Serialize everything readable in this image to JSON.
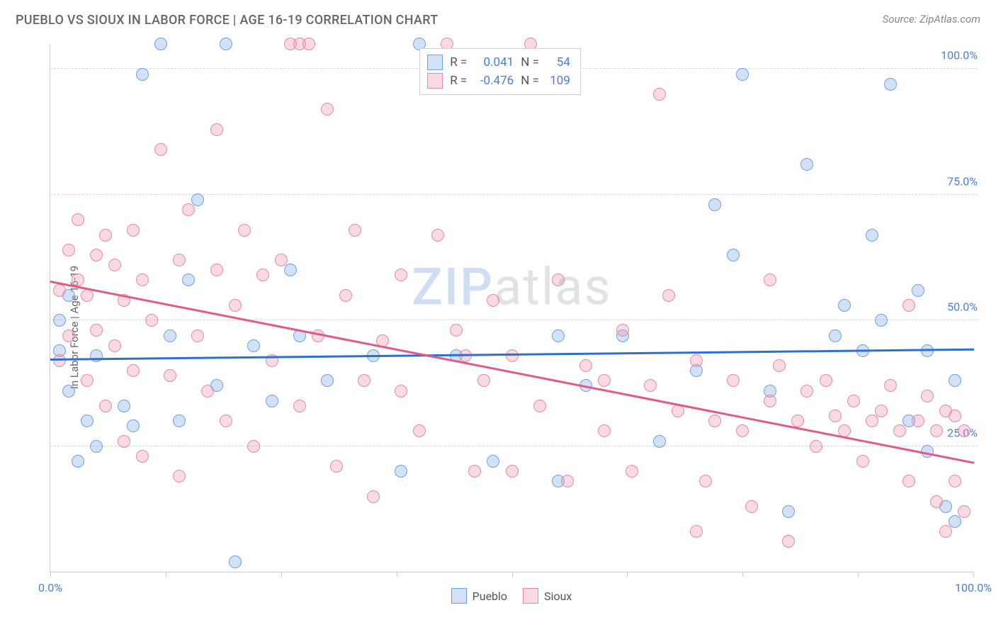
{
  "title": "PUEBLO VS SIOUX IN LABOR FORCE | AGE 16-19 CORRELATION CHART",
  "source": "Source: ZipAtlas.com",
  "ylabel": "In Labor Force | Age 16-19",
  "watermark_bold": "ZIP",
  "watermark_rest": "atlas",
  "chart": {
    "type": "scatter",
    "background_color": "#ffffff",
    "grid_color": "#d8d8d8",
    "axis_color": "#cccccc",
    "xlim": [
      0,
      100
    ],
    "ylim": [
      0,
      105
    ],
    "xtick_positions": [
      0,
      12.5,
      25,
      37.5,
      50,
      62.5,
      75,
      87.5,
      100
    ],
    "xtick_labels": {
      "0": "0.0%",
      "100": "100.0%"
    },
    "ytick_positions": [
      25,
      50,
      75,
      100
    ],
    "ytick_labels": {
      "25": "25.0%",
      "50": "50.0%",
      "75": "75.0%",
      "100": "100.0%"
    },
    "label_color": "#4a7fd6",
    "label_fontsize": 16,
    "title_fontsize": 18,
    "title_color": "#666666",
    "point_radius": 9,
    "point_border_width": 1.5,
    "point_fill_opacity": 0.35,
    "series": [
      {
        "name": "Pueblo",
        "color_border": "#6aa2e8",
        "color_fill": "rgba(130,170,230,0.35)",
        "trend_color": "#2f6fd0",
        "R": "0.041",
        "N": "54",
        "trend": {
          "x1": 0,
          "y1": 42.5,
          "x2": 100,
          "y2": 44.5
        },
        "points": [
          [
            1,
            44
          ],
          [
            1,
            50
          ],
          [
            2,
            36
          ],
          [
            2,
            55
          ],
          [
            3,
            22
          ],
          [
            4,
            30
          ],
          [
            5,
            25
          ],
          [
            5,
            43
          ],
          [
            8,
            33
          ],
          [
            9,
            29
          ],
          [
            10,
            99
          ],
          [
            12,
            105
          ],
          [
            13,
            47
          ],
          [
            15,
            58
          ],
          [
            16,
            74
          ],
          [
            18,
            37
          ],
          [
            19,
            105
          ],
          [
            20,
            2
          ],
          [
            22,
            45
          ],
          [
            24,
            34
          ],
          [
            26,
            60
          ],
          [
            27,
            47
          ],
          [
            30,
            38
          ],
          [
            35,
            43
          ],
          [
            38,
            20
          ],
          [
            44,
            43
          ],
          [
            48,
            22
          ],
          [
            55,
            18
          ],
          [
            58,
            37
          ],
          [
            62,
            47
          ],
          [
            66,
            26
          ],
          [
            70,
            40
          ],
          [
            72,
            73
          ],
          [
            74,
            63
          ],
          [
            75,
            99
          ],
          [
            78,
            36
          ],
          [
            80,
            12
          ],
          [
            82,
            81
          ],
          [
            85,
            47
          ],
          [
            86,
            53
          ],
          [
            88,
            44
          ],
          [
            89,
            67
          ],
          [
            90,
            50
          ],
          [
            91,
            97
          ],
          [
            93,
            30
          ],
          [
            94,
            56
          ],
          [
            95,
            44
          ],
          [
            95,
            24
          ],
          [
            97,
            13
          ],
          [
            98,
            10
          ],
          [
            98,
            38
          ],
          [
            55,
            47
          ],
          [
            40,
            105
          ],
          [
            14,
            30
          ]
        ]
      },
      {
        "name": "Sioux",
        "color_border": "#e88aa5",
        "color_fill": "rgba(235,150,175,0.35)",
        "trend_color": "#e05a8a",
        "R": "-0.476",
        "N": "109",
        "trend": {
          "x1": 0,
          "y1": 58.0,
          "x2": 100,
          "y2": 22.0
        },
        "points": [
          [
            1,
            56
          ],
          [
            1,
            42
          ],
          [
            2,
            64
          ],
          [
            2,
            47
          ],
          [
            3,
            58
          ],
          [
            3,
            70
          ],
          [
            4,
            55
          ],
          [
            4,
            38
          ],
          [
            5,
            63
          ],
          [
            5,
            48
          ],
          [
            6,
            67
          ],
          [
            6,
            33
          ],
          [
            7,
            45
          ],
          [
            7,
            61
          ],
          [
            8,
            54
          ],
          [
            8,
            26
          ],
          [
            9,
            68
          ],
          [
            9,
            40
          ],
          [
            10,
            58
          ],
          [
            10,
            23
          ],
          [
            11,
            50
          ],
          [
            12,
            84
          ],
          [
            13,
            39
          ],
          [
            14,
            62
          ],
          [
            14,
            19
          ],
          [
            15,
            72
          ],
          [
            16,
            47
          ],
          [
            17,
            36
          ],
          [
            18,
            60
          ],
          [
            18,
            88
          ],
          [
            19,
            30
          ],
          [
            20,
            53
          ],
          [
            21,
            68
          ],
          [
            22,
            25
          ],
          [
            23,
            59
          ],
          [
            24,
            42
          ],
          [
            25,
            62
          ],
          [
            26,
            105
          ],
          [
            27,
            105
          ],
          [
            27,
            33
          ],
          [
            28,
            105
          ],
          [
            29,
            47
          ],
          [
            30,
            92
          ],
          [
            31,
            21
          ],
          [
            32,
            55
          ],
          [
            33,
            68
          ],
          [
            34,
            38
          ],
          [
            35,
            15
          ],
          [
            36,
            46
          ],
          [
            38,
            59
          ],
          [
            40,
            28
          ],
          [
            42,
            67
          ],
          [
            43,
            105
          ],
          [
            44,
            48
          ],
          [
            46,
            20
          ],
          [
            47,
            38
          ],
          [
            48,
            54
          ],
          [
            50,
            43
          ],
          [
            52,
            105
          ],
          [
            53,
            33
          ],
          [
            55,
            58
          ],
          [
            56,
            18
          ],
          [
            58,
            41
          ],
          [
            60,
            28
          ],
          [
            62,
            48
          ],
          [
            63,
            20
          ],
          [
            65,
            37
          ],
          [
            66,
            95
          ],
          [
            67,
            55
          ],
          [
            68,
            32
          ],
          [
            70,
            42
          ],
          [
            71,
            18
          ],
          [
            72,
            30
          ],
          [
            74,
            38
          ],
          [
            75,
            28
          ],
          [
            76,
            13
          ],
          [
            78,
            34
          ],
          [
            79,
            41
          ],
          [
            80,
            6
          ],
          [
            81,
            30
          ],
          [
            82,
            36
          ],
          [
            83,
            25
          ],
          [
            84,
            38
          ],
          [
            85,
            31
          ],
          [
            86,
            28
          ],
          [
            87,
            34
          ],
          [
            88,
            22
          ],
          [
            89,
            30
          ],
          [
            90,
            32
          ],
          [
            91,
            37
          ],
          [
            92,
            28
          ],
          [
            93,
            53
          ],
          [
            93,
            18
          ],
          [
            94,
            30
          ],
          [
            95,
            35
          ],
          [
            96,
            14
          ],
          [
            96,
            28
          ],
          [
            97,
            32
          ],
          [
            97,
            8
          ],
          [
            98,
            31
          ],
          [
            98,
            18
          ],
          [
            99,
            28
          ],
          [
            99,
            12
          ],
          [
            78,
            58
          ],
          [
            70,
            8
          ],
          [
            50,
            20
          ],
          [
            60,
            38
          ],
          [
            45,
            43
          ],
          [
            38,
            36
          ]
        ]
      }
    ]
  },
  "legend_top": {
    "R_label": "R =",
    "N_label": "N ="
  },
  "legend_bottom": [
    {
      "label": "Pueblo",
      "fill": "rgba(130,170,230,0.35)",
      "border": "#6aa2e8"
    },
    {
      "label": "Sioux",
      "fill": "rgba(235,150,175,0.35)",
      "border": "#e88aa5"
    }
  ]
}
